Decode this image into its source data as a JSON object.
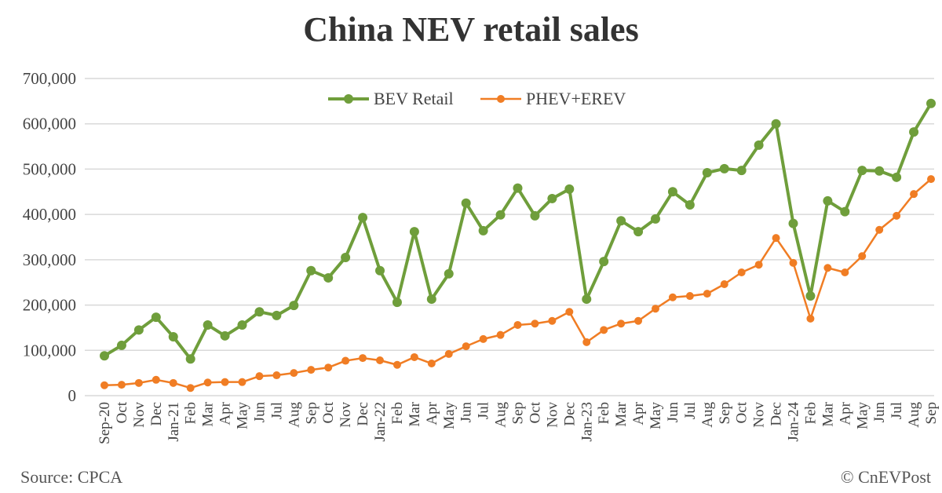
{
  "footer": {
    "source": "Source: CPCA",
    "credit": "© CnEVPost"
  },
  "chart_data": {
    "type": "line",
    "title": "China NEV retail sales",
    "xlabel": "",
    "ylabel": "",
    "ylim": [
      0,
      700000
    ],
    "yticks": [
      0,
      100000,
      200000,
      300000,
      400000,
      500000,
      600000,
      700000
    ],
    "ytick_labels": [
      "0",
      "100,000",
      "200,000",
      "300,000",
      "400,000",
      "500,000",
      "600,000",
      "700,000"
    ],
    "grid": true,
    "legend_position": "top-center",
    "categories": [
      "Sep-20",
      "Oct",
      "Nov",
      "Dec",
      "Jan-21",
      "Feb",
      "Mar",
      "Apr",
      "May",
      "Jun",
      "Jul",
      "Aug",
      "Sep",
      "Oct",
      "Nov",
      "Dec",
      "Jan-22",
      "Feb",
      "Mar",
      "Apr",
      "May",
      "Jun",
      "Jul",
      "Aug",
      "Sep",
      "Oct",
      "Nov",
      "Dec",
      "Jan-23",
      "Feb",
      "Mar",
      "Apr",
      "May",
      "Jun",
      "Jul",
      "Aug",
      "Sep",
      "Oct",
      "Nov",
      "Dec",
      "Jan-24",
      "Feb",
      "Mar",
      "Apr",
      "May",
      "Jun",
      "Jul",
      "Aug",
      "Sep"
    ],
    "series": [
      {
        "name": "BEV Retail",
        "color": "#6f9e3b",
        "values": [
          88000,
          111000,
          145000,
          173000,
          130000,
          81000,
          156000,
          132000,
          156000,
          185000,
          177000,
          199000,
          276000,
          260000,
          305000,
          393000,
          276000,
          206000,
          362000,
          213000,
          269000,
          425000,
          364000,
          399000,
          458000,
          397000,
          435000,
          456000,
          213000,
          296000,
          386000,
          362000,
          390000,
          450000,
          421000,
          492000,
          501000,
          497000,
          553000,
          600000,
          380000,
          220000,
          430000,
          406000,
          497000,
          496000,
          482000,
          582000,
          645000
        ]
      },
      {
        "name": "PHEV+EREV",
        "color": "#f07d24",
        "values": [
          23000,
          24000,
          28000,
          35000,
          28000,
          17000,
          29000,
          30000,
          30000,
          43000,
          45000,
          50000,
          57000,
          62000,
          77000,
          83000,
          78000,
          68000,
          85000,
          71000,
          92000,
          109000,
          125000,
          134000,
          156000,
          159000,
          165000,
          185000,
          118000,
          145000,
          159000,
          165000,
          192000,
          217000,
          220000,
          225000,
          246000,
          272000,
          289000,
          348000,
          293000,
          170000,
          282000,
          272000,
          308000,
          366000,
          397000,
          445000,
          478000
        ]
      }
    ]
  }
}
